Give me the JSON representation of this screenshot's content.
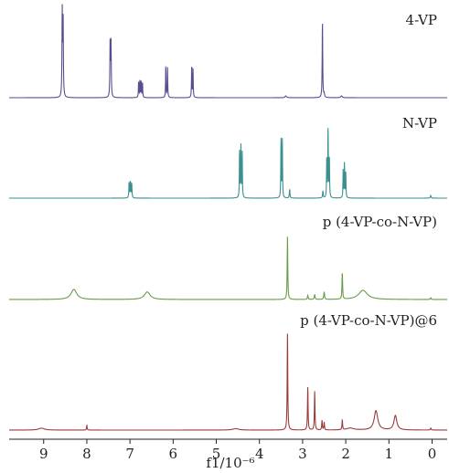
{
  "chart_data": {
    "type": "line",
    "xlabel": "f1/10⁻⁶",
    "x_reversed": true,
    "xlim": [
      9.8,
      -0.35
    ],
    "xticks": [
      9,
      8,
      7,
      6,
      5,
      4,
      3,
      2,
      1,
      0
    ],
    "grid": false,
    "legend": "none",
    "series": [
      {
        "name": "4-VP",
        "color": "#5b4b8f",
        "peaks": [
          {
            "x": 8.57,
            "h": 0.95,
            "w": 0.007
          },
          {
            "x": 8.55,
            "h": 0.9,
            "w": 0.007
          },
          {
            "x": 7.46,
            "h": 0.62,
            "w": 0.007
          },
          {
            "x": 7.44,
            "h": 0.6,
            "w": 0.007
          },
          {
            "x": 6.8,
            "h": 0.18,
            "w": 0.006
          },
          {
            "x": 6.77,
            "h": 0.2,
            "w": 0.006
          },
          {
            "x": 6.74,
            "h": 0.19,
            "w": 0.006
          },
          {
            "x": 6.71,
            "h": 0.17,
            "w": 0.006
          },
          {
            "x": 6.17,
            "h": 0.36,
            "w": 0.006
          },
          {
            "x": 6.13,
            "h": 0.34,
            "w": 0.006
          },
          {
            "x": 5.57,
            "h": 0.34,
            "w": 0.006
          },
          {
            "x": 5.54,
            "h": 0.33,
            "w": 0.006
          },
          {
            "x": 3.39,
            "h": 0.02,
            "w": 0.02
          },
          {
            "x": 2.54,
            "h": 0.86,
            "w": 0.007
          },
          {
            "x": 2.5,
            "h": 0.04,
            "w": 0.01
          },
          {
            "x": 2.1,
            "h": 0.02,
            "w": 0.02
          }
        ]
      },
      {
        "name": "N-VP",
        "color": "#3a8f8f",
        "peaks": [
          {
            "x": 7.02,
            "h": 0.18,
            "w": 0.007
          },
          {
            "x": 6.99,
            "h": 0.19,
            "w": 0.007
          },
          {
            "x": 6.96,
            "h": 0.17,
            "w": 0.007
          },
          {
            "x": 4.46,
            "h": 0.55,
            "w": 0.006
          },
          {
            "x": 4.43,
            "h": 0.6,
            "w": 0.006
          },
          {
            "x": 4.4,
            "h": 0.52,
            "w": 0.006
          },
          {
            "x": 3.5,
            "h": 0.7,
            "w": 0.006
          },
          {
            "x": 3.47,
            "h": 0.68,
            "w": 0.006
          },
          {
            "x": 3.3,
            "h": 0.1,
            "w": 0.008
          },
          {
            "x": 2.53,
            "h": 0.08,
            "w": 0.008
          },
          {
            "x": 2.44,
            "h": 0.45,
            "w": 0.006
          },
          {
            "x": 2.41,
            "h": 0.82,
            "w": 0.006
          },
          {
            "x": 2.38,
            "h": 0.48,
            "w": 0.006
          },
          {
            "x": 2.06,
            "h": 0.32,
            "w": 0.006
          },
          {
            "x": 2.03,
            "h": 0.4,
            "w": 0.006
          },
          {
            "x": 2.0,
            "h": 0.3,
            "w": 0.006
          },
          {
            "x": 0.03,
            "h": 0.03,
            "w": 0.01
          }
        ]
      },
      {
        "name": "p (4-VP-co-N-VP)",
        "color": "#6a9a4a",
        "peaks": [
          {
            "x": 8.3,
            "h": 0.12,
            "w": 0.08
          },
          {
            "x": 6.6,
            "h": 0.09,
            "w": 0.08
          },
          {
            "x": 3.35,
            "h": 0.75,
            "w": 0.008
          },
          {
            "x": 2.88,
            "h": 0.05,
            "w": 0.01
          },
          {
            "x": 2.72,
            "h": 0.06,
            "w": 0.01
          },
          {
            "x": 2.5,
            "h": 0.09,
            "w": 0.01
          },
          {
            "x": 2.08,
            "h": 0.32,
            "w": 0.008
          },
          {
            "x": 1.6,
            "h": 0.11,
            "w": 0.12
          },
          {
            "x": 0.03,
            "h": 0.02,
            "w": 0.01
          }
        ]
      },
      {
        "name": "p (4-VP-co-N-VP)@6",
        "color": "#9c3a3a",
        "peaks": [
          {
            "x": 9.05,
            "h": 0.02,
            "w": 0.08
          },
          {
            "x": 8.0,
            "h": 0.05,
            "w": 0.008
          },
          {
            "x": 4.55,
            "h": 0.015,
            "w": 0.08
          },
          {
            "x": 3.35,
            "h": 1.0,
            "w": 0.008
          },
          {
            "x": 2.88,
            "h": 0.45,
            "w": 0.008
          },
          {
            "x": 2.72,
            "h": 0.4,
            "w": 0.008
          },
          {
            "x": 2.55,
            "h": 0.1,
            "w": 0.008
          },
          {
            "x": 2.5,
            "h": 0.08,
            "w": 0.008
          },
          {
            "x": 2.08,
            "h": 0.1,
            "w": 0.008
          },
          {
            "x": 1.3,
            "h": 0.2,
            "w": 0.05
          },
          {
            "x": 0.85,
            "h": 0.15,
            "w": 0.04
          },
          {
            "x": 1.9,
            "h": 0.02,
            "w": 0.1
          },
          {
            "x": 0.03,
            "h": 0.02,
            "w": 0.01
          }
        ]
      }
    ]
  }
}
